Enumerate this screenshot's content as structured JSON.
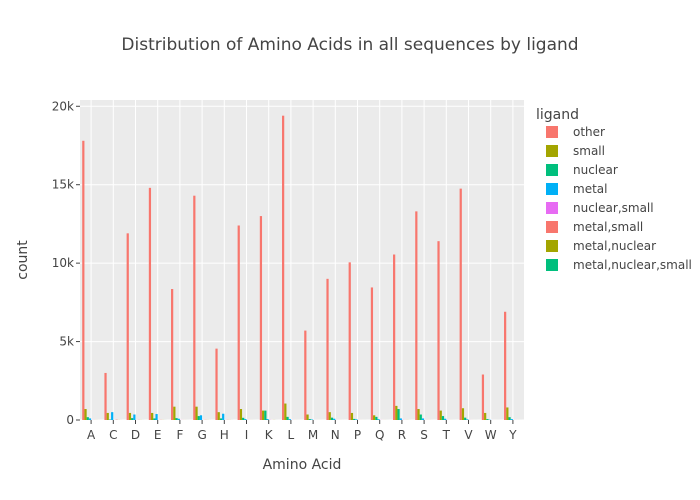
{
  "chart_data": {
    "type": "bar",
    "title": "Distribution of Amino Acids in all sequences by ligand",
    "xlabel": "Amino Acid",
    "ylabel": "count",
    "ylim": [
      0,
      20400
    ],
    "yticks": [
      0,
      5000,
      10000,
      15000,
      20000
    ],
    "ytick_labels": [
      "0",
      "5k",
      "10k",
      "15k",
      "20k"
    ],
    "grid": true,
    "legend_title": "ligand",
    "legend_position": "right",
    "categories": [
      "A",
      "C",
      "D",
      "E",
      "F",
      "G",
      "H",
      "I",
      "K",
      "L",
      "M",
      "N",
      "P",
      "Q",
      "R",
      "S",
      "T",
      "V",
      "W",
      "Y"
    ],
    "series": [
      {
        "name": "other",
        "color": "#f8766d",
        "values": [
          17800,
          3000,
          11900,
          14800,
          8350,
          14300,
          4550,
          12400,
          13000,
          19400,
          5700,
          9000,
          10050,
          8450,
          10550,
          13300,
          11400,
          14750,
          2900,
          6900
        ]
      },
      {
        "name": "small",
        "color": "#a3a500",
        "values": [
          700,
          450,
          450,
          450,
          850,
          850,
          500,
          700,
          600,
          1050,
          350,
          500,
          450,
          300,
          900,
          700,
          600,
          750,
          450,
          800
        ]
      },
      {
        "name": "nuclear",
        "color": "#00bf7d",
        "values": [
          180,
          30,
          120,
          100,
          120,
          250,
          100,
          140,
          600,
          200,
          60,
          150,
          70,
          200,
          700,
          350,
          250,
          150,
          60,
          180
        ]
      },
      {
        "name": "metal",
        "color": "#00b0f6",
        "values": [
          100,
          500,
          350,
          380,
          80,
          300,
          400,
          60,
          60,
          60,
          30,
          80,
          40,
          50,
          100,
          100,
          80,
          40,
          20,
          60
        ]
      },
      {
        "name": "nuclear,small",
        "color": "#e76bf3",
        "values": [
          5,
          3,
          5,
          5,
          5,
          5,
          5,
          5,
          10,
          5,
          2,
          5,
          3,
          5,
          10,
          5,
          5,
          5,
          2,
          5
        ]
      },
      {
        "name": "metal,small",
        "color": "#f8766d",
        "values": [
          5,
          20,
          10,
          10,
          3,
          10,
          10,
          3,
          3,
          3,
          2,
          3,
          2,
          2,
          5,
          5,
          3,
          2,
          1,
          3
        ]
      },
      {
        "name": "metal,nuclear",
        "color": "#a3a500",
        "values": [
          3,
          5,
          5,
          5,
          2,
          5,
          5,
          2,
          5,
          2,
          1,
          2,
          1,
          2,
          5,
          3,
          2,
          1,
          1,
          2
        ]
      },
      {
        "name": "metal,nuclear,small",
        "color": "#00bf7d",
        "values": [
          1,
          2,
          2,
          2,
          1,
          2,
          2,
          1,
          1,
          1,
          1,
          1,
          1,
          1,
          2,
          1,
          1,
          1,
          1,
          1
        ]
      }
    ]
  }
}
